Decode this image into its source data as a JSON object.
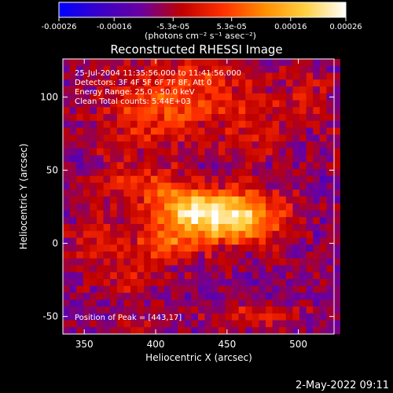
{
  "chart_data": {
    "type": "heatmap",
    "title": "Reconstructed RHESSI Image",
    "xlabel": "Heliocentric X (arcsec)",
    "ylabel": "Heliocentric Y (arcsec)",
    "xlim": [
      335,
      525
    ],
    "ylim": [
      -62,
      126
    ],
    "x_ticks": [
      350,
      400,
      450,
      500
    ],
    "y_ticks": [
      -50,
      0,
      50,
      100
    ],
    "colorbar": {
      "range": [
        -0.00026,
        0.00026
      ],
      "tick_values": [
        -0.00026,
        -0.00016,
        -5.3e-05,
        5.3e-05,
        0.00016,
        0.00026
      ],
      "tick_labels": [
        "-0.00026",
        "-0.00016",
        "-5.3e-05",
        "5.3e-05",
        "0.00016",
        "0.00026"
      ],
      "units_label": "(photons cm⁻² s⁻¹ asec⁻²)",
      "colors": [
        "#0000ff",
        "#3a00c8",
        "#6a00a0",
        "#c00000",
        "#ff3000",
        "#ff8c00",
        "#ffd040",
        "#ffffff"
      ]
    },
    "info_lines": [
      "25-Jul-2004 11:35:56.000 to 11:41:56.000",
      "Detectors: 3F 4F 5F 6F 7F 8F, Att 0",
      "Energy Range: 25.0 - 50.0 keV",
      "Clean     Total counts: 5.44E+03"
    ],
    "peak_label": "Position of Peak = [443,17]",
    "peak": {
      "x": 443,
      "y": 17
    },
    "intensity_features": [
      {
        "x": 443,
        "y": 17,
        "sigma_x": 22,
        "sigma_y": 12,
        "amplitude": 0.00027
      },
      {
        "x": 420,
        "y": 25,
        "sigma_x": 14,
        "sigma_y": 9,
        "amplitude": 0.00014
      },
      {
        "x": 405,
        "y": 0,
        "sigma_x": 16,
        "sigma_y": 10,
        "amplitude": 0.00014
      },
      {
        "x": 390,
        "y": 40,
        "sigma_x": 25,
        "sigma_y": 12,
        "amplitude": 0.00011
      },
      {
        "x": 470,
        "y": 20,
        "sigma_x": 18,
        "sigma_y": 12,
        "amplitude": 0.00012
      },
      {
        "x": 420,
        "y": 105,
        "sigma_x": 35,
        "sigma_y": 15,
        "amplitude": 0.00013
      },
      {
        "x": 395,
        "y": 80,
        "sigma_x": 30,
        "sigma_y": 12,
        "amplitude": 8e-05
      },
      {
        "x": 470,
        "y": 75,
        "sigma_x": 20,
        "sigma_y": 12,
        "amplitude": 8e-05
      },
      {
        "x": 360,
        "y": 0,
        "sigma_x": 15,
        "sigma_y": 12,
        "amplitude": 8e-05
      },
      {
        "x": 380,
        "y": -25,
        "sigma_x": 15,
        "sigma_y": 8,
        "amplitude": 6e-05
      },
      {
        "x": 470,
        "y": -50,
        "sigma_x": 25,
        "sigma_y": 6,
        "amplitude": 9e-05
      },
      {
        "x": 390,
        "y": -55,
        "sigma_x": 15,
        "sigma_y": 5,
        "amplitude": 5e-05
      },
      {
        "x": 505,
        "y": 100,
        "sigma_x": 15,
        "sigma_y": 15,
        "amplitude": 6e-05
      }
    ]
  },
  "footer": {
    "timestamp": "2-May-2022 09:11"
  }
}
